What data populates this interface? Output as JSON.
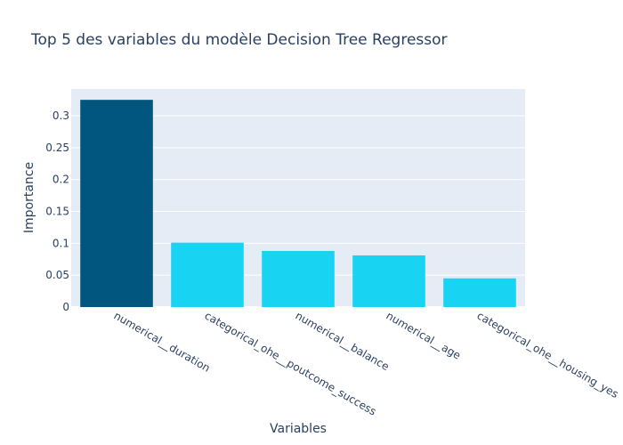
{
  "chart_data": {
    "type": "bar",
    "title": "Top 5 des variables du modèle Decision Tree Regressor",
    "xlabel": "Variables",
    "ylabel": "Importance",
    "categories": [
      "numerical__duration",
      "categorical_ohe__poutcome_success",
      "numerical__balance",
      "numerical__age",
      "categorical_ohe__housing_yes"
    ],
    "values": [
      0.325,
      0.101,
      0.088,
      0.081,
      0.045
    ],
    "bar_colors": [
      "#00567f",
      "#19d3f3",
      "#19d3f3",
      "#19d3f3",
      "#19d3f3"
    ],
    "ylim": [
      0,
      0.342
    ],
    "yticks": [
      0,
      0.05,
      0.1,
      0.15,
      0.2,
      0.25,
      0.3
    ],
    "ytick_labels": [
      "0",
      "0.05",
      "0.1",
      "0.15",
      "0.2",
      "0.25",
      "0.3"
    ],
    "grid": true,
    "plot_background": "#e5ecf6",
    "text_color": "#2a3f5f",
    "legend": "none"
  }
}
